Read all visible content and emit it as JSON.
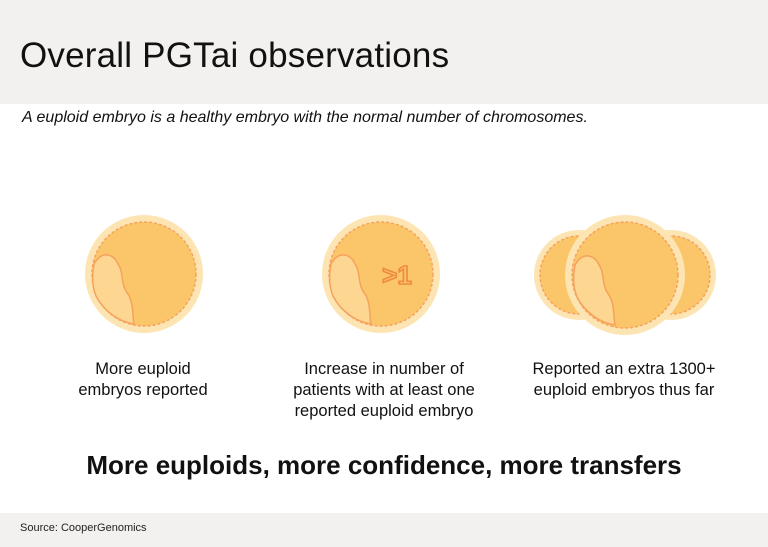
{
  "header": {
    "title": "Overall PGTai observations"
  },
  "subtitle": "A euploid embryo is a healthy embryo with the normal number of chromosomes.",
  "observations": [
    {
      "icon": "euploid-embryo-icon",
      "caption_lines": [
        "More euploid",
        "embryos reported"
      ]
    },
    {
      "icon": "greater-than-one-embryo-icon",
      "badge": ">1",
      "caption_lines": [
        "Increase in number of",
        "patients with at least one",
        "reported euploid embryo"
      ]
    },
    {
      "icon": "multiple-embryos-icon",
      "caption_lines": [
        "Reported an extra 1300+",
        "euploid embryos thus far"
      ]
    }
  ],
  "tagline": "More euploids, more confidence, more transfers",
  "footer": {
    "source": "Source: CooperGenomics"
  },
  "colors": {
    "header_bg": "#f2f1ef",
    "embryo_outer": "#fde5b3",
    "embryo_inner": "#fbc56a",
    "embryo_light": "#fdd692",
    "embryo_edge": "#f5a25d"
  }
}
